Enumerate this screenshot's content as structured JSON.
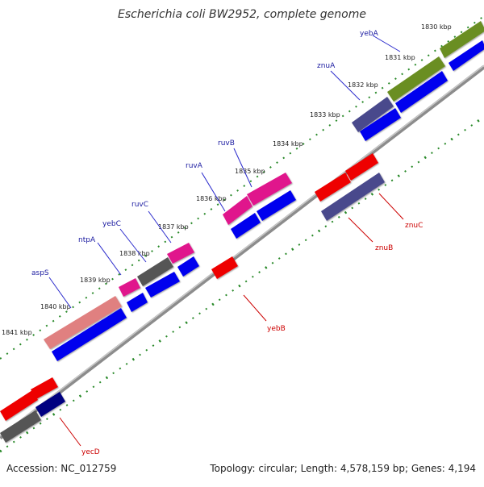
{
  "title": "Escherichia coli BW2952, complete genome",
  "footer": {
    "accession": "Accession: NC_012759",
    "summary": "Topology: circular; Length: 4,578,159 bp; Genes: 4,194"
  },
  "ticks": [
    "1830 kbp",
    "1831 kbp",
    "1832 kbp",
    "1833 kbp",
    "1834 kbp",
    "1835 kbp",
    "1836 kbp",
    "1837 kbp",
    "1838 kbp",
    "1839 kbp",
    "1840 kbp",
    "1841 kbp"
  ],
  "genes_forward": [
    "yebA",
    "znuA",
    "ruvB",
    "ruvA",
    "ruvC",
    "yebC",
    "ntpA",
    "aspS"
  ],
  "genes_reverse": [
    "znuC",
    "znuB",
    "yebB",
    "yecD"
  ],
  "colors": {
    "backbone": "#888888",
    "tick": "#2a8a2a",
    "cds": "#0000ee",
    "olive": "#6b8e23",
    "slate": "#4a4a8c",
    "magenta": "#e0148c",
    "gray": "#555555",
    "salmon": "#e08080",
    "red": "#ee0000",
    "navy": "#000080",
    "label_forward": "#1a1aa0",
    "label_reverse": "#cc0000"
  }
}
